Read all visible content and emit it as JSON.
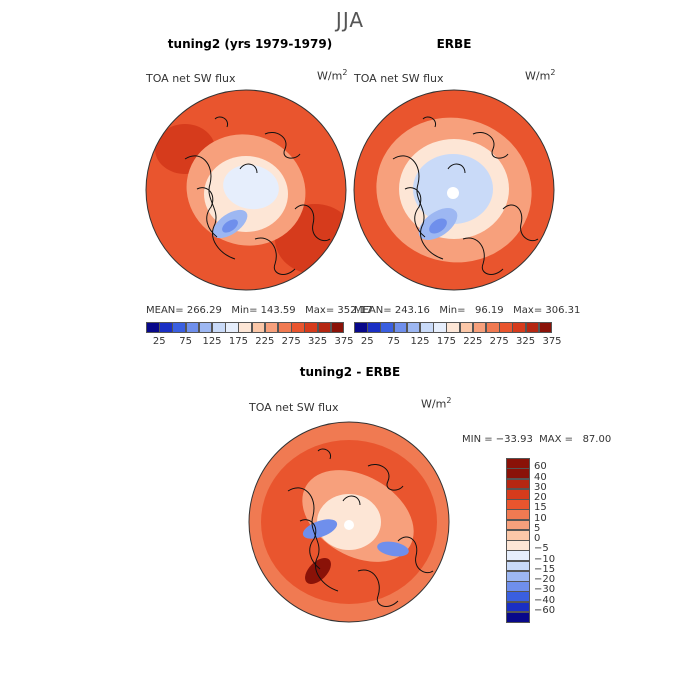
{
  "season": "JJA",
  "units_base": "W/m",
  "units_exp": "2",
  "chart_data": [
    {
      "type": "heatmap",
      "title": "tuning2 (yrs 1979-1979)",
      "variable": "TOA net SW flux",
      "stats_text": "MEAN= 266.29   Min= 143.59   Max= 352.17",
      "mean": 266.29,
      "min": 143.59,
      "max": 352.17,
      "projection": "polar stereographic, north pole",
      "colorbar_levels": [
        "25",
        "75",
        "125",
        "175",
        "225",
        "275",
        "325",
        "375"
      ]
    },
    {
      "type": "heatmap",
      "title": "ERBE",
      "variable": "TOA net SW flux",
      "stats_text": "MEAN= 243.16   Min=   96.19   Max= 306.31",
      "mean": 243.16,
      "min": 96.19,
      "max": 306.31,
      "projection": "polar stereographic, north pole",
      "colorbar_levels": [
        "25",
        "75",
        "125",
        "175",
        "225",
        "275",
        "325",
        "375"
      ]
    },
    {
      "type": "heatmap",
      "title": "tuning2 - ERBE",
      "variable": "TOA net SW flux",
      "stats_text": "MIN = −33.93  MAX =   87.00",
      "min": -33.93,
      "max": 87.0,
      "projection": "polar stereographic, north pole",
      "colorbar_levels": [
        "60",
        "40",
        "30",
        "20",
        "15",
        "10",
        "5",
        "0",
        "−5",
        "−10",
        "−15",
        "−20",
        "−30",
        "−40",
        "−60"
      ]
    }
  ],
  "colors": {
    "abs_scale": [
      "#08088a",
      "#1a2fc4",
      "#3a5fe0",
      "#6f8fec",
      "#9db7f2",
      "#c9daf8",
      "#e6eefc",
      "#fde6d6",
      "#fbc7a8",
      "#f7a07c",
      "#f07a52",
      "#e9552e",
      "#d63b1c",
      "#b52712",
      "#8a1208"
    ],
    "diff_scale": [
      "#8a1208",
      "#b52712",
      "#d63b1c",
      "#e9552e",
      "#f07a52",
      "#f7a07c",
      "#fbc7a8",
      "#fde6d6",
      "#e6eefc",
      "#c9daf8",
      "#9db7f2",
      "#6f8fec",
      "#3a5fe0",
      "#1a2fc4",
      "#08088a"
    ]
  }
}
